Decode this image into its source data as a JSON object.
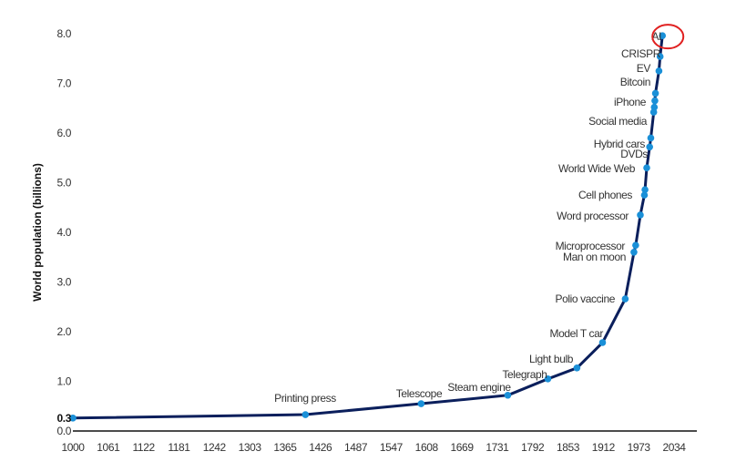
{
  "chart_data": {
    "type": "line",
    "title": "",
    "xlabel": "",
    "ylabel": "World population (billions)",
    "ylim": [
      0,
      8
    ],
    "xlim": [
      1000,
      2034
    ],
    "grid": false,
    "y_ticks": [
      "0.0",
      "1.0",
      "2.0",
      "3.0",
      "4.0",
      "5.0",
      "6.0",
      "7.0",
      "8.0"
    ],
    "x_ticks": [
      "1000",
      "1061",
      "1122",
      "1181",
      "1242",
      "1303",
      "1365",
      "1426",
      "1487",
      "1547",
      "1608",
      "1669",
      "1731",
      "1792",
      "1853",
      "1912",
      "1973",
      "2034"
    ],
    "start_label": "0.3",
    "line_color": "#0b1f5c",
    "point_color": "#1a90d8",
    "highlight_color": "#e02020",
    "highlight": "AI",
    "points": [
      {
        "x": 1000,
        "y": 0.26,
        "label": ""
      },
      {
        "x": 1400,
        "y": 0.33,
        "label": "Printing press"
      },
      {
        "x": 1599,
        "y": 0.55,
        "label": "Telescope"
      },
      {
        "x": 1748,
        "y": 0.72,
        "label": "Steam engine"
      },
      {
        "x": 1817,
        "y": 1.05,
        "label": "Telegraph"
      },
      {
        "x": 1867,
        "y": 1.27,
        "label": "Light bulb"
      },
      {
        "x": 1911,
        "y": 1.78,
        "label": "Model T car"
      },
      {
        "x": 1950,
        "y": 2.66,
        "label": "Polio vaccine"
      },
      {
        "x": 1965,
        "y": 3.6,
        "label": "Man on moon"
      },
      {
        "x": 1968,
        "y": 3.74,
        "label": "Microprocessor"
      },
      {
        "x": 1976,
        "y": 4.35,
        "label": "Word processor"
      },
      {
        "x": 1983,
        "y": 4.75,
        "label": "Cell phones"
      },
      {
        "x": 1984,
        "y": 4.86,
        "label": ""
      },
      {
        "x": 1987,
        "y": 5.3,
        "label": "World Wide Web"
      },
      {
        "x": 1992,
        "y": 5.72,
        "label": "DVDs"
      },
      {
        "x": 1994,
        "y": 5.9,
        "label": "Hybrid cars"
      },
      {
        "x": 1999,
        "y": 6.42,
        "label": "Social media"
      },
      {
        "x": 2000,
        "y": 6.52,
        "label": ""
      },
      {
        "x": 2001,
        "y": 6.65,
        "label": "iPhone"
      },
      {
        "x": 2002,
        "y": 6.8,
        "label": "Bitcoin"
      },
      {
        "x": 2008,
        "y": 7.25,
        "label": "EV"
      },
      {
        "x": 2010,
        "y": 7.54,
        "label": "CRISPR"
      },
      {
        "x": 2014,
        "y": 7.96,
        "label": "AI"
      }
    ]
  }
}
